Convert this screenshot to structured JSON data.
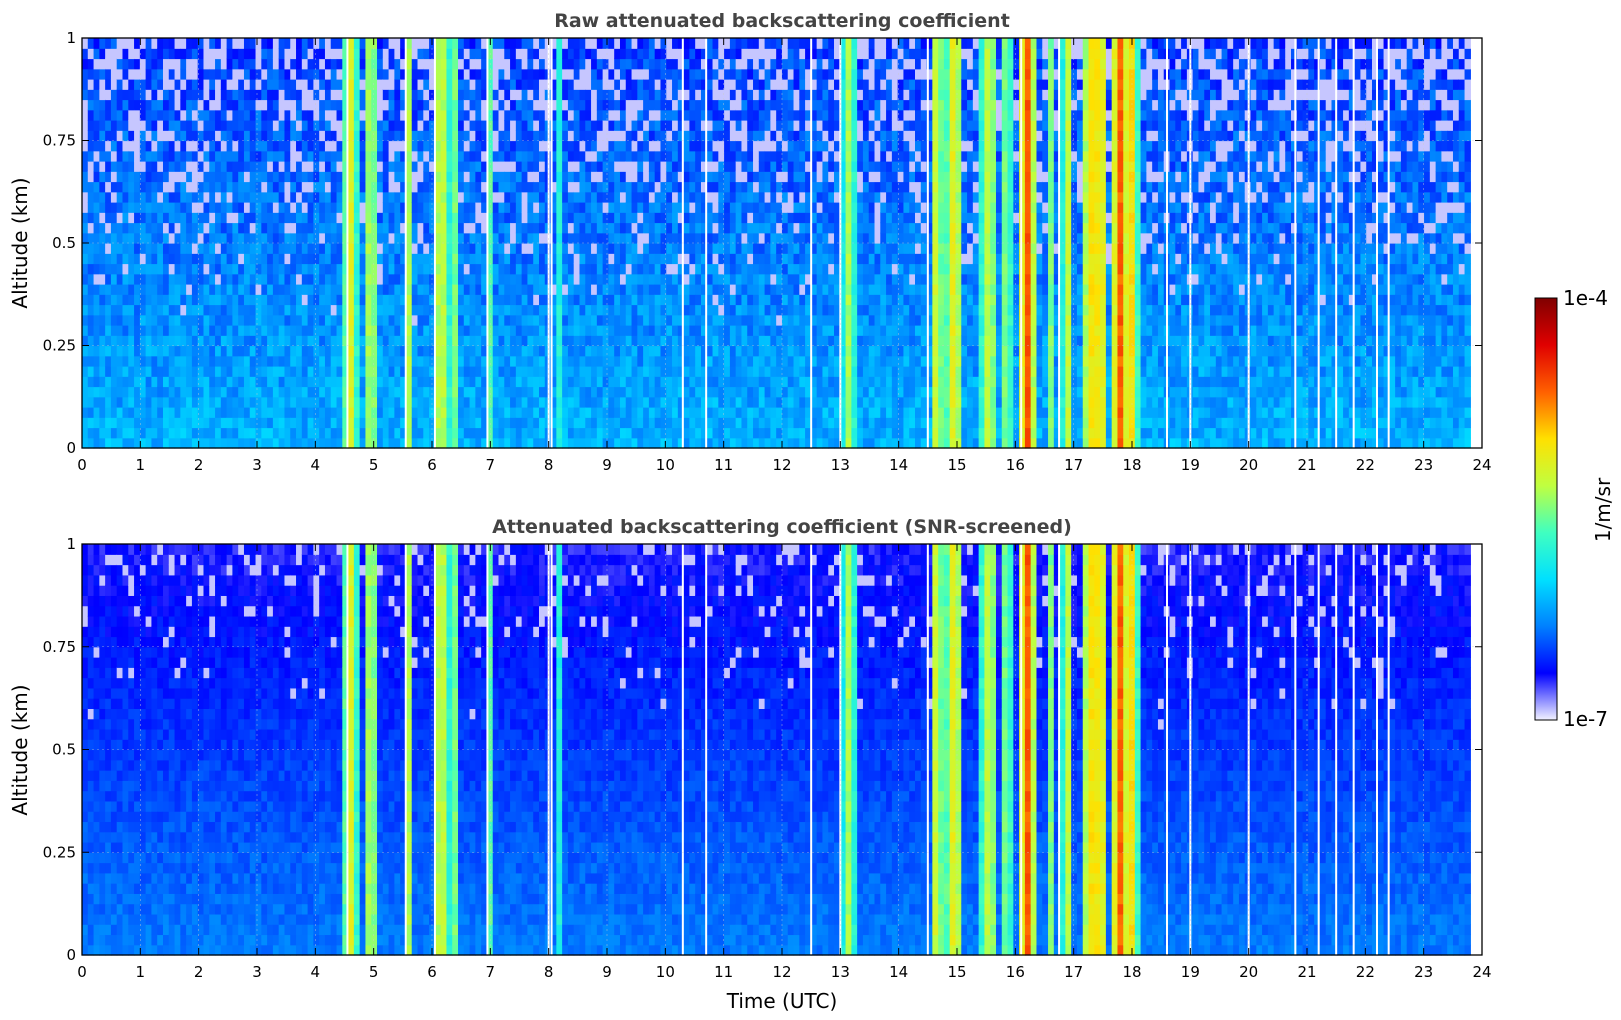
{
  "chart_data": [
    {
      "type": "heatmap",
      "title": "Raw attenuated backscattering coefficient",
      "xlabel": "",
      "ylabel": "Altitude (km)",
      "xlim": [
        0,
        24
      ],
      "ylim": [
        0,
        1
      ],
      "x_ticks": [
        "0",
        "1",
        "2",
        "3",
        "4",
        "5",
        "6",
        "7",
        "8",
        "9",
        "10",
        "11",
        "12",
        "13",
        "14",
        "15",
        "16",
        "17",
        "18",
        "19",
        "20",
        "21",
        "22",
        "23",
        "24"
      ],
      "y_ticks": [
        "0",
        "0.25",
        "0.5",
        "0.75",
        "1"
      ],
      "grid": true,
      "data_end_time": 23.8,
      "background_level": 0.28,
      "noise_level": "high",
      "cloud_columns": [
        {
          "t": 4.6,
          "w": 0.12,
          "v": 0.62
        },
        {
          "t": 4.95,
          "w": 0.12,
          "v": 0.6
        },
        {
          "t": 5.6,
          "w": 0.08,
          "v": 0.55
        },
        {
          "t": 6.15,
          "w": 0.15,
          "v": 0.62
        },
        {
          "t": 6.4,
          "w": 0.06,
          "v": 0.5
        },
        {
          "t": 7.0,
          "w": 0.08,
          "v": 0.48
        },
        {
          "t": 8.2,
          "w": 0.05,
          "v": 0.45
        },
        {
          "t": 13.15,
          "w": 0.12,
          "v": 0.55
        },
        {
          "t": 14.65,
          "w": 0.12,
          "v": 0.62
        },
        {
          "t": 14.95,
          "w": 0.15,
          "v": 0.65
        },
        {
          "t": 15.55,
          "w": 0.15,
          "v": 0.6
        },
        {
          "t": 15.85,
          "w": 0.1,
          "v": 0.55
        },
        {
          "t": 16.2,
          "w": 0.12,
          "v": 0.82
        },
        {
          "t": 16.6,
          "w": 0.08,
          "v": 0.52
        },
        {
          "t": 16.9,
          "w": 0.1,
          "v": 0.58
        },
        {
          "t": 17.35,
          "w": 0.22,
          "v": 0.7
        },
        {
          "t": 17.45,
          "w": 0.06,
          "v": 0.88
        },
        {
          "t": 17.8,
          "w": 0.15,
          "v": 0.78
        },
        {
          "t": 18.0,
          "w": 0.1,
          "v": 0.66
        }
      ],
      "gap_times": [
        4.55,
        5.55,
        6.05,
        6.95,
        8.0,
        8.05,
        10.3,
        10.7,
        12.5,
        13.0,
        14.5,
        16.1,
        16.75,
        18.6,
        19.0,
        20.0,
        20.8,
        21.2,
        21.5,
        21.8,
        22.2,
        22.4
      ]
    },
    {
      "type": "heatmap",
      "title": "Attenuated backscattering coefficient (SNR-screened)",
      "xlabel": "Time (UTC)",
      "ylabel": "Altitude (km)",
      "xlim": [
        0,
        24
      ],
      "ylim": [
        0,
        1
      ],
      "x_ticks": [
        "0",
        "1",
        "2",
        "3",
        "4",
        "5",
        "6",
        "7",
        "8",
        "9",
        "10",
        "11",
        "12",
        "13",
        "14",
        "15",
        "16",
        "17",
        "18",
        "19",
        "20",
        "21",
        "22",
        "23",
        "24"
      ],
      "y_ticks": [
        "0",
        "0.25",
        "0.5",
        "0.75",
        "1"
      ],
      "grid": true,
      "data_end_time": 23.8,
      "background_level": 0.22,
      "noise_level": "low",
      "cloud_columns": [
        {
          "t": 4.6,
          "w": 0.12,
          "v": 0.62
        },
        {
          "t": 4.95,
          "w": 0.12,
          "v": 0.6
        },
        {
          "t": 5.6,
          "w": 0.08,
          "v": 0.55
        },
        {
          "t": 6.15,
          "w": 0.15,
          "v": 0.62
        },
        {
          "t": 6.4,
          "w": 0.06,
          "v": 0.5
        },
        {
          "t": 7.0,
          "w": 0.08,
          "v": 0.48
        },
        {
          "t": 8.2,
          "w": 0.05,
          "v": 0.45
        },
        {
          "t": 13.15,
          "w": 0.12,
          "v": 0.55
        },
        {
          "t": 14.65,
          "w": 0.12,
          "v": 0.62
        },
        {
          "t": 14.95,
          "w": 0.15,
          "v": 0.65
        },
        {
          "t": 15.55,
          "w": 0.15,
          "v": 0.6
        },
        {
          "t": 15.85,
          "w": 0.1,
          "v": 0.55
        },
        {
          "t": 16.2,
          "w": 0.12,
          "v": 0.82
        },
        {
          "t": 16.6,
          "w": 0.08,
          "v": 0.52
        },
        {
          "t": 16.9,
          "w": 0.1,
          "v": 0.58
        },
        {
          "t": 17.35,
          "w": 0.22,
          "v": 0.7
        },
        {
          "t": 17.45,
          "w": 0.06,
          "v": 0.88
        },
        {
          "t": 17.8,
          "w": 0.15,
          "v": 0.78
        },
        {
          "t": 18.0,
          "w": 0.1,
          "v": 0.66
        }
      ],
      "gap_times": [
        4.55,
        5.55,
        6.05,
        6.95,
        8.0,
        8.05,
        10.3,
        10.7,
        12.5,
        13.0,
        14.5,
        16.1,
        16.75,
        18.6,
        19.0,
        20.0,
        20.8,
        21.2,
        21.5,
        21.8,
        22.2,
        22.4
      ]
    }
  ],
  "colorbar": {
    "label": "1/m/sr",
    "max_label": "1e-4",
    "min_label": "1e-7",
    "scale": "log",
    "colormap": "jet",
    "colors": [
      "#f2f2ff",
      "#0000ff",
      "#0080ff",
      "#00e0ff",
      "#40ffc0",
      "#c0ff40",
      "#ffe000",
      "#ff6000",
      "#e00000",
      "#800000"
    ]
  }
}
